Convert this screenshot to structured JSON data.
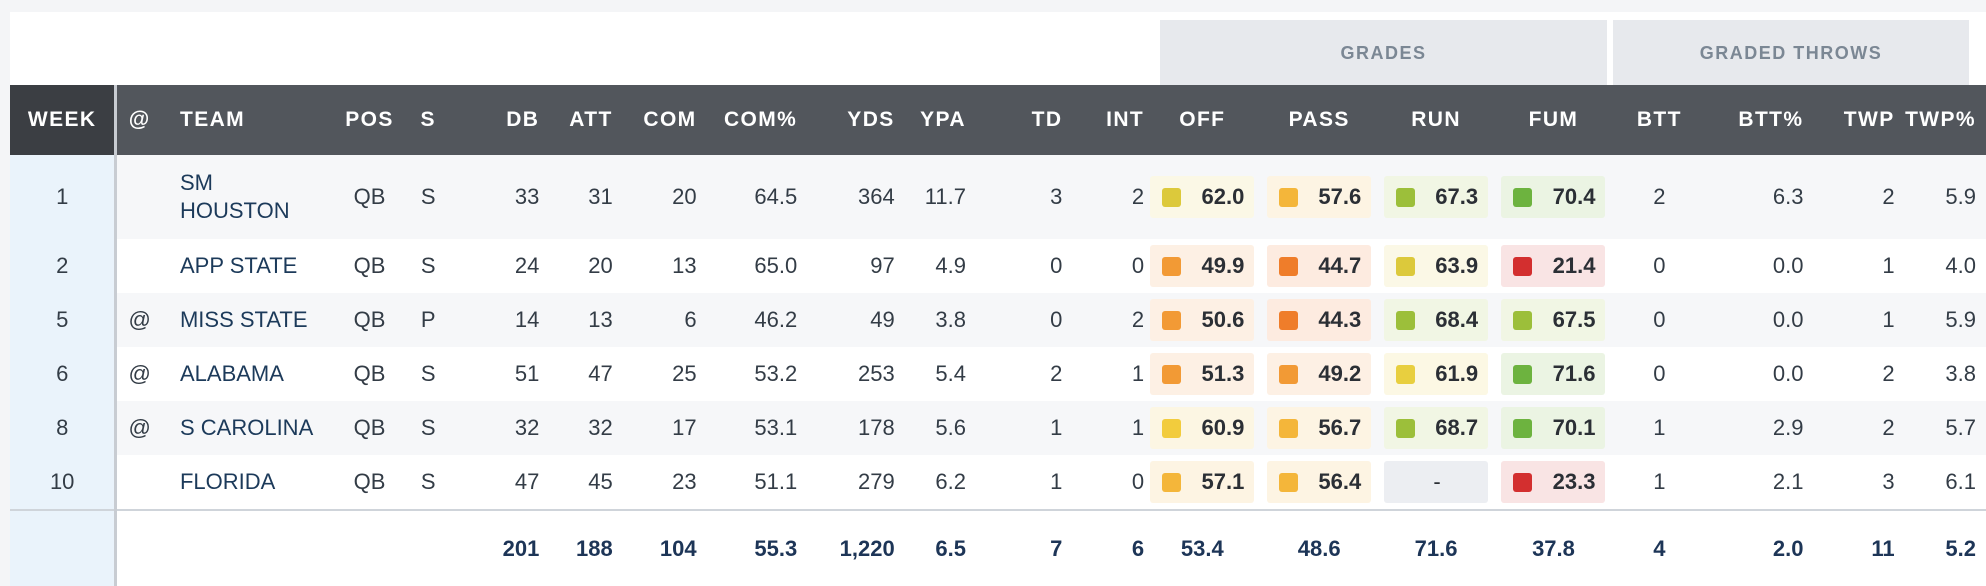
{
  "group_headers": {
    "grades": "GRADES",
    "graded_throws": "GRADED THROWS"
  },
  "columns": {
    "week": "WEEK",
    "at": "@",
    "team": "TEAM",
    "pos": "POS",
    "s": "S",
    "db": "DB",
    "att": "ATT",
    "com": "COM",
    "com_pct": "COM%",
    "yds": "YDS",
    "ypa": "YPA",
    "td": "TD",
    "int": "INT",
    "off": "OFF",
    "pass": "PASS",
    "run": "RUN",
    "fum": "FUM",
    "btt": "BTT",
    "btt_pct": "BTT%",
    "twp": "TWP",
    "twp_pct": "TWP%"
  },
  "grade_colors": {
    "red": "#d32f2f",
    "orange": "#ef7d2a",
    "orange_light": "#f29a35",
    "amber": "#f4b63a",
    "yellow": "#dcc93b",
    "yellow_bright": "#f2cc3d",
    "lime": "#9cbf3a",
    "green": "#6db33f"
  },
  "rows": [
    {
      "week": "1",
      "at": "",
      "team": "SM\nHOUSTON",
      "pos": "QB",
      "s": "S",
      "db": "33",
      "att": "31",
      "com": "20",
      "com_pct": "64.5",
      "yds": "364",
      "ypa": "11.7",
      "td": "3",
      "int": "2",
      "off": {
        "value": "62.0",
        "color": "#dcc93b",
        "bg": "#fbf8e6"
      },
      "pass": {
        "value": "57.6",
        "color": "#f4b63a",
        "bg": "#fdf4e3"
      },
      "run": {
        "value": "67.3",
        "color": "#9cbf3a",
        "bg": "#f1f6e4"
      },
      "fum": {
        "value": "70.4",
        "color": "#6db33f",
        "bg": "#ebf4e3"
      },
      "btt": "2",
      "btt_pct": "6.3",
      "twp": "2",
      "twp_pct": "5.9"
    },
    {
      "week": "2",
      "at": "",
      "team": "APP STATE",
      "pos": "QB",
      "s": "S",
      "db": "24",
      "att": "20",
      "com": "13",
      "com_pct": "65.0",
      "yds": "97",
      "ypa": "4.9",
      "td": "0",
      "int": "0",
      "off": {
        "value": "49.9",
        "color": "#f29a35",
        "bg": "#fdf0e4"
      },
      "pass": {
        "value": "44.7",
        "color": "#ef7d2a",
        "bg": "#fdebe0"
      },
      "run": {
        "value": "63.9",
        "color": "#dcc93b",
        "bg": "#fbf8e6"
      },
      "fum": {
        "value": "21.4",
        "color": "#d32f2f",
        "bg": "#f9e4e4"
      },
      "btt": "0",
      "btt_pct": "0.0",
      "twp": "1",
      "twp_pct": "4.0"
    },
    {
      "week": "5",
      "at": "@",
      "team": "MISS STATE",
      "pos": "QB",
      "s": "P",
      "db": "14",
      "att": "13",
      "com": "6",
      "com_pct": "46.2",
      "yds": "49",
      "ypa": "3.8",
      "td": "0",
      "int": "2",
      "off": {
        "value": "50.6",
        "color": "#f29a35",
        "bg": "#fdf0e4"
      },
      "pass": {
        "value": "44.3",
        "color": "#ef7d2a",
        "bg": "#fdebe0"
      },
      "run": {
        "value": "68.4",
        "color": "#9cbf3a",
        "bg": "#f1f6e4"
      },
      "fum": {
        "value": "67.5",
        "color": "#9cbf3a",
        "bg": "#f1f6e4"
      },
      "btt": "0",
      "btt_pct": "0.0",
      "twp": "1",
      "twp_pct": "5.9"
    },
    {
      "week": "6",
      "at": "@",
      "team": "ALABAMA",
      "pos": "QB",
      "s": "S",
      "db": "51",
      "att": "47",
      "com": "25",
      "com_pct": "53.2",
      "yds": "253",
      "ypa": "5.4",
      "td": "2",
      "int": "1",
      "off": {
        "value": "51.3",
        "color": "#f29a35",
        "bg": "#fdf0e4"
      },
      "pass": {
        "value": "49.2",
        "color": "#f29a35",
        "bg": "#fdf0e4"
      },
      "run": {
        "value": "61.9",
        "color": "#e8cf3f",
        "bg": "#fcf8e4"
      },
      "fum": {
        "value": "71.6",
        "color": "#6db33f",
        "bg": "#ebf4e3"
      },
      "btt": "0",
      "btt_pct": "0.0",
      "twp": "2",
      "twp_pct": "3.8"
    },
    {
      "week": "8",
      "at": "@",
      "team": "S CAROLINA",
      "pos": "QB",
      "s": "S",
      "db": "32",
      "att": "32",
      "com": "17",
      "com_pct": "53.1",
      "yds": "178",
      "ypa": "5.6",
      "td": "1",
      "int": "1",
      "off": {
        "value": "60.9",
        "color": "#f2cc3d",
        "bg": "#fcf6e3"
      },
      "pass": {
        "value": "56.7",
        "color": "#f4b63a",
        "bg": "#fdf4e3"
      },
      "run": {
        "value": "68.7",
        "color": "#9cbf3a",
        "bg": "#f1f6e4"
      },
      "fum": {
        "value": "70.1",
        "color": "#6db33f",
        "bg": "#ebf4e3"
      },
      "btt": "1",
      "btt_pct": "2.9",
      "twp": "2",
      "twp_pct": "5.7"
    },
    {
      "week": "10",
      "at": "",
      "team": "FLORIDA",
      "pos": "QB",
      "s": "S",
      "db": "47",
      "att": "45",
      "com": "23",
      "com_pct": "51.1",
      "yds": "279",
      "ypa": "6.2",
      "td": "1",
      "int": "0",
      "off": {
        "value": "57.1",
        "color": "#f4b63a",
        "bg": "#fdf4e3"
      },
      "pass": {
        "value": "56.4",
        "color": "#f4b63a",
        "bg": "#fdf4e3"
      },
      "run": {
        "value": "-",
        "color": "",
        "bg": ""
      },
      "fum": {
        "value": "23.3",
        "color": "#d32f2f",
        "bg": "#f9e4e4"
      },
      "btt": "1",
      "btt_pct": "2.1",
      "twp": "3",
      "twp_pct": "6.1"
    }
  ],
  "totals": {
    "db": "201",
    "att": "188",
    "com": "104",
    "com_pct": "55.3",
    "yds": "1,220",
    "ypa": "6.5",
    "td": "7",
    "int": "6",
    "off": "53.4",
    "pass": "48.6",
    "run": "71.6",
    "fum": "37.8",
    "btt": "4",
    "btt_pct": "2.0",
    "twp": "11",
    "twp_pct": "5.2"
  }
}
